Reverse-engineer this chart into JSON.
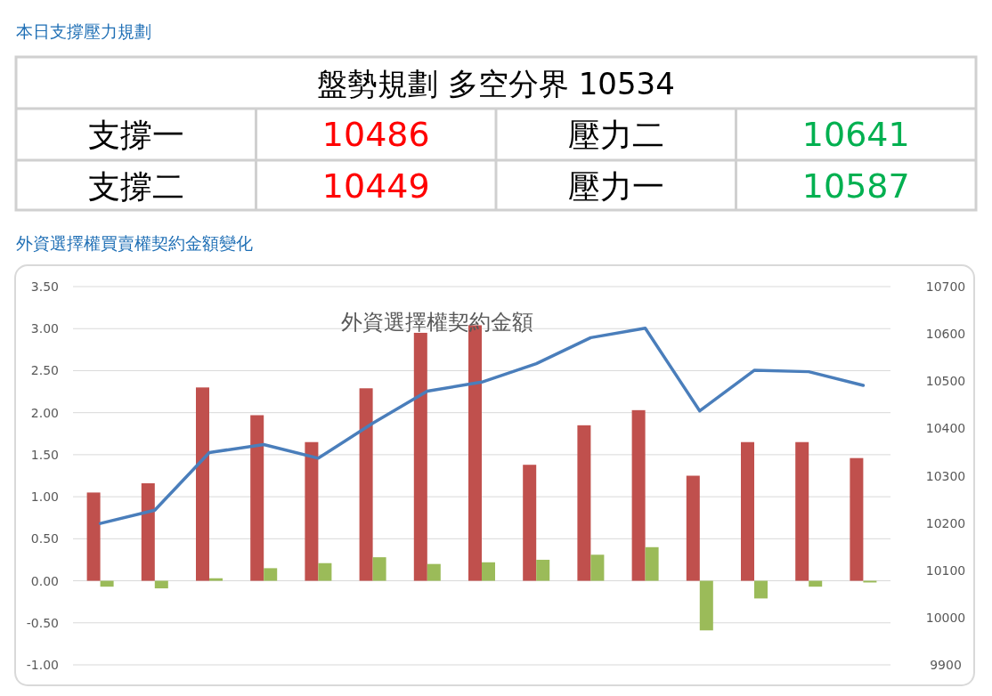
{
  "chart_data": [
    {
      "type": "other",
      "title": "本日支撐壓力規劃",
      "subtitle": "盤勢規劃 多空分界 10534",
      "categories": [
        "支撐一",
        "壓力二",
        "支撐二",
        "壓力一"
      ],
      "values": [
        10486,
        10641,
        10449,
        10587
      ],
      "colors": [
        "#ff0000",
        "#00b050",
        "#ff0000",
        "#00b050"
      ],
      "data_labels": true
    },
    {
      "type": "bar",
      "title": "外資選擇權買賣權契約金額變化",
      "subtitle": "外資選擇權契約金額",
      "categories": [
        null,
        null,
        null,
        null,
        null,
        null,
        null,
        null,
        null,
        null,
        null,
        null,
        null,
        null,
        null
      ],
      "series": [
        {
          "color": "#c0504d",
          "values": [
            1.05,
            1.16,
            2.3,
            1.97,
            1.65,
            2.29,
            2.95,
            3.04,
            1.38,
            1.85,
            2.03,
            1.25,
            1.65,
            1.65,
            1.46
          ]
        },
        {
          "color": "#9bbb59",
          "values": [
            -0.07,
            -0.09,
            0.03,
            0.15,
            0.21,
            0.28,
            0.2,
            0.22,
            0.25,
            0.31,
            0.4,
            -0.59,
            -0.21,
            -0.07,
            -0.02
          ]
        },
        {
          "type": "line",
          "axis": "y2",
          "color": "#4a7ebb",
          "values": [
            10199,
            10227,
            10349,
            10366,
            10337,
            10411,
            10479,
            10498,
            10537,
            10592,
            10612,
            10437,
            10523,
            10520,
            10491
          ]
        }
      ],
      "ylim": [
        -1.0,
        3.5
      ],
      "yticks": [
        {
          "value": -1.0,
          "label": "-1.00"
        },
        {
          "value": -0.5,
          "label": "-0.50"
        },
        {
          "value": 0,
          "label": "0.00"
        },
        {
          "value": 0.5,
          "label": "0.50"
        },
        {
          "value": 1.0,
          "label": "1.00"
        },
        {
          "value": 1.5,
          "label": "1.50"
        },
        {
          "value": 2.0,
          "label": "2.00"
        },
        {
          "value": 2.5,
          "label": "2.50"
        },
        {
          "value": 3.0,
          "label": "3.00"
        },
        {
          "value": 3.5,
          "label": "3.50"
        }
      ],
      "y2lim": [
        9900,
        10700
      ],
      "y2ticks": [
        9900,
        10000,
        10100,
        10200,
        10300,
        10400,
        10500,
        10600,
        10700
      ],
      "grid": "y"
    }
  ]
}
